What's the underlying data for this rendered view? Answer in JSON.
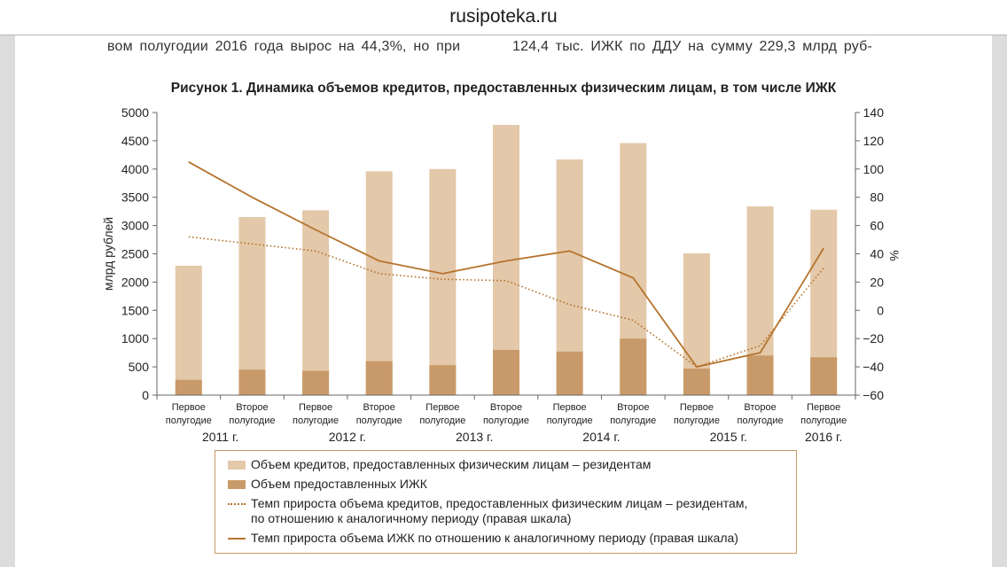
{
  "site_title": "rusipoteka.ru",
  "body_text": {
    "line_left": "вом полугодии 2016 года вырос на 44,3%, но при",
    "line_right": "124,4 тыс. ИЖК по ДДУ на сумму 229,3 млрд руб-"
  },
  "colors": {
    "total_bar": "#e3c8a9",
    "mortgage_bar": "#c99a69",
    "line_color": "#b5742e",
    "legend_border": "#c89a6a"
  },
  "chart_data": {
    "type": "bar",
    "title": "Рисунок 1. Динамика объемов кредитов, предоставленных физическим лицам, в том числе ИЖК",
    "ylabel": "млрд рублей",
    "ylabel_right": "%",
    "ylim": [
      0,
      5000
    ],
    "ylim_right": [
      -60,
      140
    ],
    "yticks": [
      0,
      500,
      1000,
      1500,
      2000,
      2500,
      3000,
      3500,
      4000,
      4500,
      5000
    ],
    "yticks_right": [
      -60,
      -40,
      -20,
      0,
      20,
      40,
      60,
      80,
      100,
      120,
      140
    ],
    "grid": false,
    "categories": [
      [
        "Первое",
        "полугодие"
      ],
      [
        "Второе",
        "полугодие"
      ],
      [
        "Первое",
        "полугодие"
      ],
      [
        "Второе",
        "полугодие"
      ],
      [
        "Первое",
        "полугодие"
      ],
      [
        "Второе",
        "полугодие"
      ],
      [
        "Первое",
        "полугодие"
      ],
      [
        "Второе",
        "полугодие"
      ],
      [
        "Первое",
        "полугодие"
      ],
      [
        "Второе",
        "полугодие"
      ],
      [
        "Первое",
        "полугодие"
      ]
    ],
    "years": [
      {
        "label": "2011 г.",
        "span": [
          0,
          1
        ]
      },
      {
        "label": "2012 г.",
        "span": [
          2,
          3
        ]
      },
      {
        "label": "2013 г.",
        "span": [
          4,
          5
        ]
      },
      {
        "label": "2014 г.",
        "span": [
          6,
          7
        ]
      },
      {
        "label": "2015 г.",
        "span": [
          8,
          9
        ]
      },
      {
        "label": "2016 г.",
        "span": [
          10,
          10
        ]
      }
    ],
    "series": [
      {
        "name": "Объем кредитов, предоставленных физическим лицам – резидентам",
        "kind": "bar",
        "axis": "left",
        "values": [
          2290,
          3150,
          3270,
          3960,
          4000,
          4780,
          4170,
          4460,
          2510,
          3340,
          3280
        ]
      },
      {
        "name": "Объем предоставленных ИЖК",
        "kind": "bar",
        "axis": "left",
        "values": [
          270,
          450,
          430,
          600,
          530,
          800,
          770,
          1000,
          470,
          700,
          670
        ]
      },
      {
        "name": "Темп прироста объема кредитов, предоставленных физическим лицам – резидентам, по отношению к аналогичному периоду (правая шкала)",
        "kind": "line-dotted",
        "axis": "right",
        "values": [
          52,
          47,
          42,
          26,
          22,
          21,
          4,
          -7,
          -40,
          -25,
          30
        ]
      },
      {
        "name": "Темп прироста объема ИЖК по отношению к аналогичному периоду (правая шкала)",
        "kind": "line-solid",
        "axis": "right",
        "values": [
          105,
          80,
          57,
          35,
          26,
          35,
          42,
          23,
          -40,
          -30,
          44
        ]
      }
    ]
  },
  "legend": {
    "item1": "Объем кредитов, предоставленных физическим лицам – резидентам",
    "item2": "Объем предоставленных ИЖК",
    "item3_line1": "Темп прироста объема кредитов, предоставленных физическим лицам – резидентам,",
    "item3_line2": "по отношению к аналогичному периоду (правая шкала)",
    "item4": "Темп прироста объема ИЖК по отношению к аналогичному периоду (правая шкала)"
  }
}
